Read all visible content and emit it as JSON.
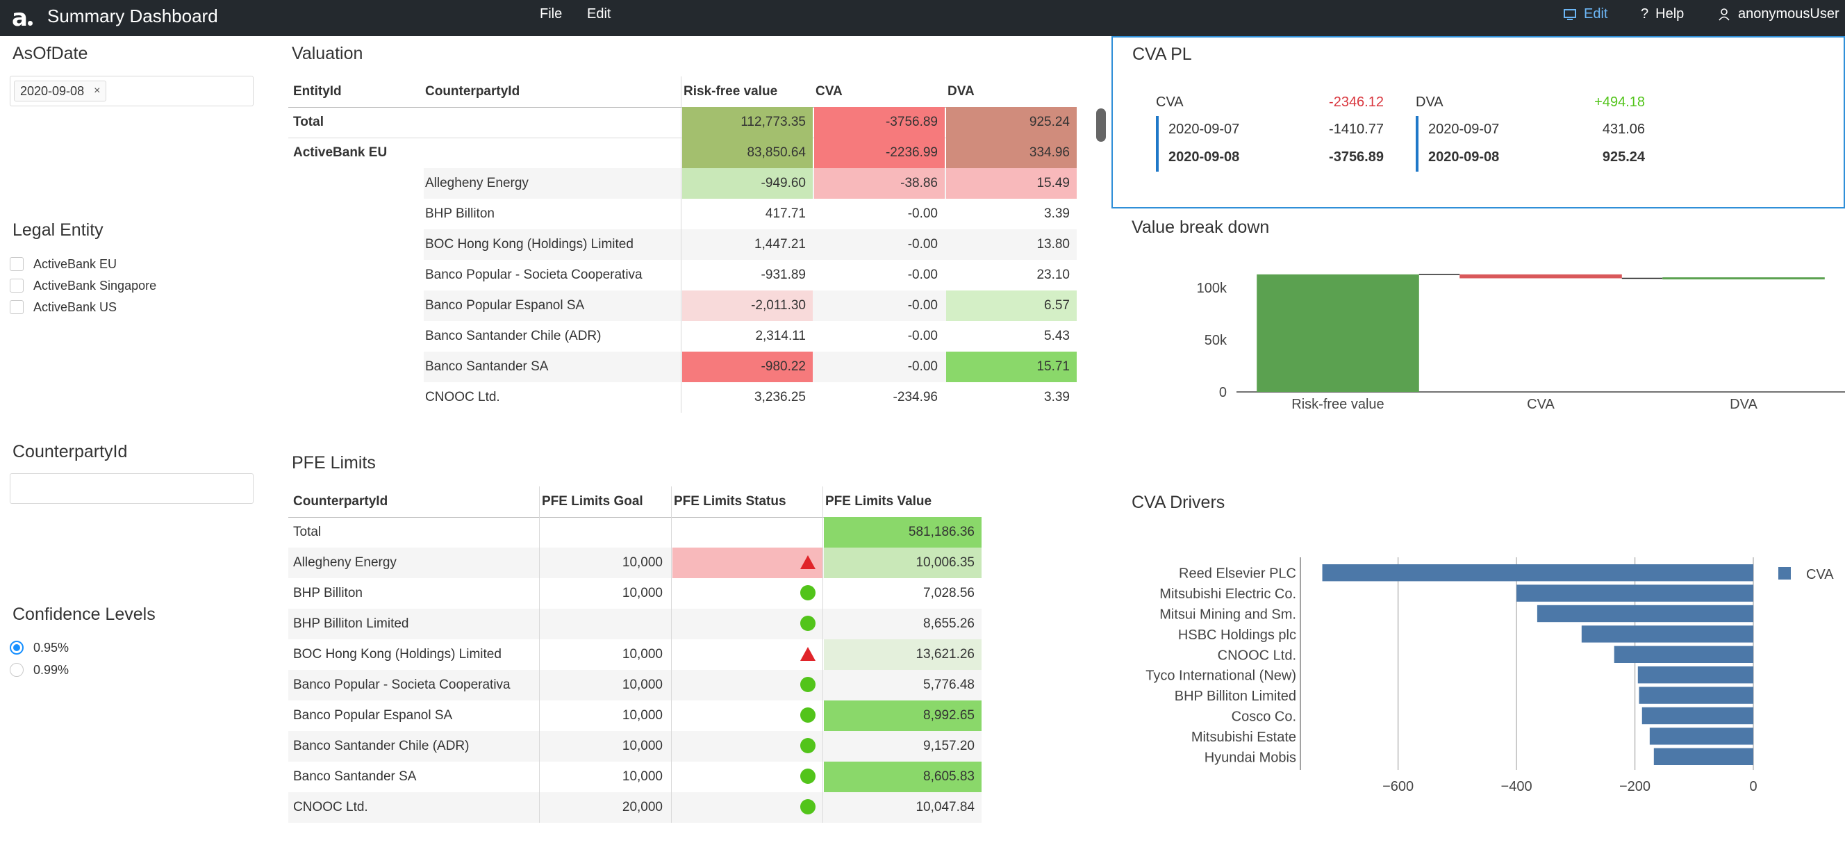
{
  "topbar": {
    "logo": "a",
    "title": "Summary Dashboard",
    "menu_file": "File",
    "menu_edit": "Edit",
    "edit_label": "Edit",
    "help_label": "Help",
    "user_label": "anonymousUser"
  },
  "filters": {
    "asofdate_title": "AsOfDate",
    "asofdate_tag": "2020-09-08",
    "tag_close": "×",
    "legal_entity_title": "Legal Entity",
    "legal_entities": [
      "ActiveBank EU",
      "ActiveBank Singapore",
      "ActiveBank US"
    ],
    "counterparty_title": "CounterpartyId",
    "counterparty_placeholder": "",
    "confidence_title": "Confidence Levels",
    "confidence_options": [
      "0.95%",
      "0.99%"
    ],
    "confidence_selected": "0.95%"
  },
  "valuation": {
    "title": "Valuation",
    "headers": [
      "EntityId",
      "CounterpartyId",
      "Risk-free value",
      "CVA",
      "DVA"
    ],
    "rows": [
      {
        "entity": "Total",
        "counterparty": "",
        "rfv": "112,773.35",
        "cva": "-3756.89",
        "dva": "925.24"
      },
      {
        "entity": "ActiveBank EU",
        "counterparty": "",
        "rfv": "83,850.64",
        "cva": "-2236.99",
        "dva": "334.96"
      },
      {
        "entity": "",
        "counterparty": "Allegheny Energy",
        "rfv": "-949.60",
        "cva": "-38.86",
        "dva": "15.49"
      },
      {
        "entity": "",
        "counterparty": "BHP Billiton",
        "rfv": "417.71",
        "cva": "-0.00",
        "dva": "3.39"
      },
      {
        "entity": "",
        "counterparty": "BOC Hong Kong (Holdings) Limited",
        "rfv": "1,447.21",
        "cva": "-0.00",
        "dva": "13.80"
      },
      {
        "entity": "",
        "counterparty": "Banco Popular - Societa Cooperativa",
        "rfv": "-931.89",
        "cva": "-0.00",
        "dva": "23.10"
      },
      {
        "entity": "",
        "counterparty": "Banco Popular Espanol SA",
        "rfv": "-2,011.30",
        "cva": "-0.00",
        "dva": "6.57"
      },
      {
        "entity": "",
        "counterparty": "Banco Santander Chile (ADR)",
        "rfv": "2,314.11",
        "cva": "-0.00",
        "dva": "5.43"
      },
      {
        "entity": "",
        "counterparty": "Banco Santander SA",
        "rfv": "-980.22",
        "cva": "-0.00",
        "dva": "15.71"
      },
      {
        "entity": "",
        "counterparty": "CNOOC Ltd.",
        "rfv": "3,236.25",
        "cva": "-234.96",
        "dva": "3.39"
      }
    ],
    "colors": {
      "rfv": [
        "#a3bf6e",
        "#a3bf6e",
        "#c9e8b8",
        "",
        "",
        "",
        "#f8dada",
        "",
        "#f67a7c",
        ""
      ],
      "cva": [
        "#f67a7c",
        "#f67a7c",
        "#f8b9bb",
        "",
        "",
        "",
        "",
        "",
        "",
        ""
      ],
      "dva": [
        "#d08c7c",
        "#d08c7c",
        "#f8b9bb",
        "",
        "",
        "",
        "#d4efc6",
        "",
        "#8ad86a",
        ""
      ]
    }
  },
  "cva_pl": {
    "title": "CVA PL",
    "cva_label": "CVA",
    "cva_change": "-2346.12",
    "cva_rows": [
      {
        "date": "2020-09-07",
        "value": "-1410.77"
      },
      {
        "date": "2020-09-08",
        "value": "-3756.89"
      }
    ],
    "dva_label": "DVA",
    "dva_change": "+494.18",
    "dva_rows": [
      {
        "date": "2020-09-07",
        "value": "431.06"
      },
      {
        "date": "2020-09-08",
        "value": "925.24"
      }
    ],
    "neg_color": "#d9363e",
    "pos_color": "#52c41a"
  },
  "value_breakdown": {
    "title": "Value break down",
    "chart_data": {
      "type": "bar",
      "subtype": "waterfall",
      "categories": [
        "Risk-free value",
        "CVA",
        "DVA"
      ],
      "values": [
        112773.35,
        -3756.89,
        925.24
      ],
      "ylim": [
        0,
        120000
      ],
      "yticks": [
        "0",
        "50k",
        "100k"
      ],
      "ytick_values": [
        0,
        50000,
        100000
      ],
      "colors": [
        "#5ba150",
        "#d9585a",
        "#5ba150"
      ]
    }
  },
  "pfe": {
    "title": "PFE Limits",
    "headers": [
      "CounterpartyId",
      "PFE Limits Goal",
      "PFE Limits Status",
      "PFE Limits Value"
    ],
    "rows": [
      {
        "cp": "Total",
        "goal": "",
        "status": "",
        "value": "581,186.36"
      },
      {
        "cp": "Allegheny Energy",
        "goal": "10,000",
        "status": "warning",
        "value": "10,006.35"
      },
      {
        "cp": "BHP Billiton",
        "goal": "10,000",
        "status": "ok",
        "value": "7,028.56"
      },
      {
        "cp": "BHP Billiton Limited",
        "goal": "",
        "status": "ok",
        "value": "8,655.26"
      },
      {
        "cp": "BOC Hong Kong (Holdings) Limited",
        "goal": "10,000",
        "status": "warning",
        "value": "13,621.26"
      },
      {
        "cp": "Banco Popular - Societa Cooperativa",
        "goal": "10,000",
        "status": "ok",
        "value": "5,776.48"
      },
      {
        "cp": "Banco Popular Espanol SA",
        "goal": "10,000",
        "status": "ok",
        "value": "8,992.65"
      },
      {
        "cp": "Banco Santander Chile (ADR)",
        "goal": "10,000",
        "status": "ok",
        "value": "9,157.20"
      },
      {
        "cp": "Banco Santander SA",
        "goal": "10,000",
        "status": "ok",
        "value": "8,605.83"
      },
      {
        "cp": "CNOOC Ltd.",
        "goal": "20,000",
        "status": "ok",
        "value": "10,047.84"
      }
    ],
    "value_colors": [
      "#8ad86a",
      "#c9e8b8",
      "",
      "",
      "#e4f0dc",
      "",
      "#8ad86a",
      "",
      "#8ad86a",
      ""
    ],
    "status_colors": [
      "",
      "#f8b9bb",
      "",
      "",
      "",
      "",
      "",
      "",
      "",
      ""
    ],
    "ok_color": "#52c41a",
    "warn_color": "#e0242a"
  },
  "cva_drivers": {
    "title": "CVA Drivers",
    "chart_data": {
      "type": "bar",
      "orientation": "horizontal",
      "categories": [
        "Reed Elsevier PLC",
        "Mitsubishi Electric Co.",
        "Mitsui Mining and Sm.",
        "HSBC Holdings plc",
        "CNOOC Ltd.",
        "Tyco International (New)",
        "BHP Billiton Limited",
        "Cosco Co.",
        "Mitsubishi Estate",
        "Hyundai Mobis"
      ],
      "series": [
        {
          "name": "CVA",
          "values": [
            -728,
            -400,
            -365,
            -290,
            -235,
            -195,
            -193,
            -188,
            -175,
            -168
          ]
        }
      ],
      "xlim": [
        -765,
        0
      ],
      "xticks": [
        "−600",
        "−400",
        "−200",
        "0"
      ],
      "xtick_values": [
        -600,
        -400,
        -200,
        0
      ],
      "color": "#4c78a8"
    }
  }
}
